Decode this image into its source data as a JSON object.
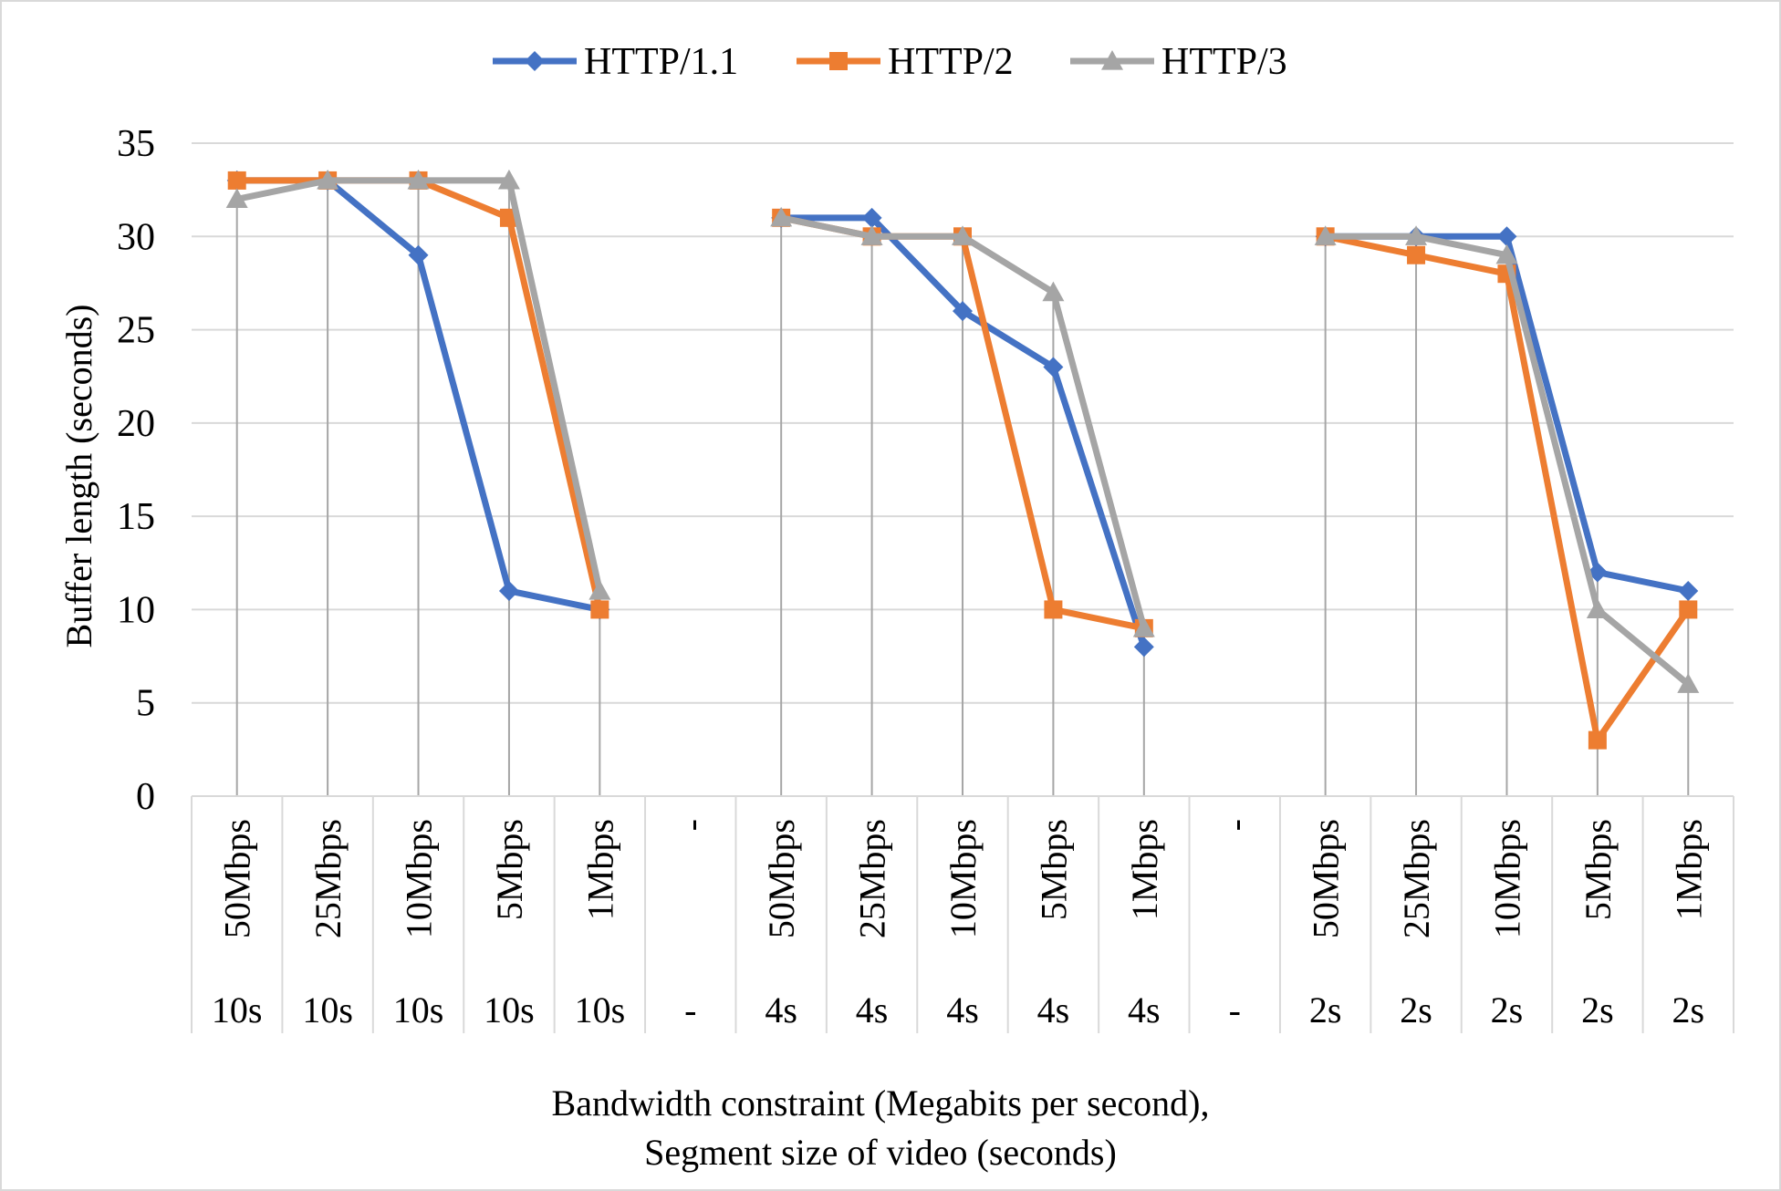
{
  "chart_data": {
    "type": "line",
    "title": "",
    "ylabel": "Buffer length (seconds)",
    "xlabel_lines": [
      "Bandwidth constraint (Megabits per second),",
      "Segment size of video (seconds)"
    ],
    "ylim": [
      0,
      35
    ],
    "yticks": [
      0,
      5,
      10,
      15,
      20,
      25,
      30,
      35
    ],
    "grid": true,
    "legend_position": "top",
    "categories": [
      {
        "bandwidth": "50Mbps",
        "segment": "10s"
      },
      {
        "bandwidth": "25Mbps",
        "segment": "10s"
      },
      {
        "bandwidth": "10Mbps",
        "segment": "10s"
      },
      {
        "bandwidth": "5Mbps",
        "segment": "10s"
      },
      {
        "bandwidth": "1Mbps",
        "segment": "10s"
      },
      {
        "bandwidth": "-",
        "segment": "-"
      },
      {
        "bandwidth": "50Mbps",
        "segment": "4s"
      },
      {
        "bandwidth": "25Mbps",
        "segment": "4s"
      },
      {
        "bandwidth": "10Mbps",
        "segment": "4s"
      },
      {
        "bandwidth": "5Mbps",
        "segment": "4s"
      },
      {
        "bandwidth": "1Mbps",
        "segment": "4s"
      },
      {
        "bandwidth": "-",
        "segment": "-"
      },
      {
        "bandwidth": "50Mbps",
        "segment": "2s"
      },
      {
        "bandwidth": "25Mbps",
        "segment": "2s"
      },
      {
        "bandwidth": "10Mbps",
        "segment": "2s"
      },
      {
        "bandwidth": "5Mbps",
        "segment": "2s"
      },
      {
        "bandwidth": "1Mbps",
        "segment": "2s"
      }
    ],
    "series": [
      {
        "name": "HTTP/1.1",
        "color": "#4472c4",
        "marker": "diamond",
        "values": [
          33,
          33,
          29,
          11,
          10,
          null,
          31,
          31,
          26,
          23,
          8,
          null,
          30,
          30,
          30,
          12,
          11
        ]
      },
      {
        "name": "HTTP/2",
        "color": "#ed7d31",
        "marker": "square",
        "values": [
          33,
          33,
          33,
          31,
          10,
          null,
          31,
          30,
          30,
          10,
          9,
          null,
          30,
          29,
          28,
          3,
          10
        ]
      },
      {
        "name": "HTTP/3",
        "color": "#a5a5a5",
        "marker": "triangle",
        "values": [
          32,
          33,
          33,
          33,
          11,
          null,
          31,
          30,
          30,
          27,
          9,
          null,
          30,
          30,
          29,
          10,
          6
        ]
      }
    ],
    "drop_lines": true
  }
}
